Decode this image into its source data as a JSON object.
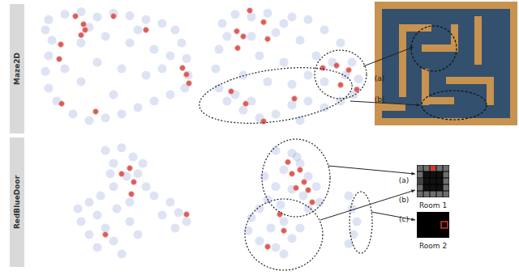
{
  "row_labels": [
    "Maze2D",
    "RedBlueDoor"
  ],
  "chart_data": [
    {
      "type": "scatter",
      "xlim": [
        0,
        100
      ],
      "ylim": [
        0,
        100
      ],
      "tick_labels": false,
      "grid": false,
      "series": [
        {
          "color": "#8a9ad6",
          "marker": "circle",
          "values": [
            [
              10,
              88
            ],
            [
              20,
              92
            ],
            [
              30,
              94
            ],
            [
              40,
              90
            ],
            [
              50,
              93
            ],
            [
              60,
              91
            ],
            [
              70,
              88
            ],
            [
              80,
              85
            ],
            [
              88,
              80
            ],
            [
              92,
              70
            ],
            [
              95,
              58
            ],
            [
              96,
              45
            ],
            [
              94,
              35
            ],
            [
              85,
              30
            ],
            [
              75,
              25
            ],
            [
              65,
              20
            ],
            [
              55,
              15
            ],
            [
              45,
              12
            ],
            [
              35,
              10
            ],
            [
              25,
              15
            ],
            [
              15,
              25
            ],
            [
              10,
              35
            ],
            [
              8,
              48
            ],
            [
              10,
              60
            ],
            [
              12,
              72
            ],
            [
              8,
              80
            ],
            [
              30,
              70
            ],
            [
              45,
              75
            ],
            [
              60,
              70
            ],
            [
              75,
              65
            ],
            [
              40,
              55
            ],
            [
              55,
              50
            ],
            [
              70,
              45
            ],
            [
              30,
              40
            ],
            [
              50,
              30
            ],
            [
              80,
              50
            ],
            [
              20,
              50
            ],
            [
              65,
              80
            ],
            [
              35,
              82
            ],
            [
              85,
              60
            ]
          ]
        },
        {
          "color": "#d9534f",
          "marker": "circle",
          "values": [
            [
              26.5,
              90.6
            ],
            [
              32.5,
              80
            ],
            [
              30,
              76
            ],
            [
              50,
              90.6
            ],
            [
              70,
              80
            ],
            [
              17.5,
              68.8
            ],
            [
              16.5,
              57.5
            ],
            [
              92.5,
              50.6
            ],
            [
              95,
              45.6
            ],
            [
              96.5,
              38.8
            ],
            [
              39,
              16.9
            ],
            [
              18,
              23
            ],
            [
              31.5,
              84.4
            ]
          ]
        }
      ]
    },
    {
      "type": "scatter",
      "xlim": [
        0,
        100
      ],
      "ylim": [
        0,
        100
      ],
      "tick_labels": false,
      "grid": false,
      "series": [
        {
          "color": "#8a9ad6",
          "marker": "circle",
          "values": [
            [
              12,
              85
            ],
            [
              20,
              92
            ],
            [
              30,
              90
            ],
            [
              40,
              93
            ],
            [
              55,
              90
            ],
            [
              65,
              88
            ],
            [
              75,
              80
            ],
            [
              85,
              70
            ],
            [
              92,
              55
            ],
            [
              96,
              42
            ],
            [
              93,
              30
            ],
            [
              85,
              25
            ],
            [
              75,
              20
            ],
            [
              65,
              25
            ],
            [
              55,
              22
            ],
            [
              45,
              15
            ],
            [
              35,
              12
            ],
            [
              25,
              18
            ],
            [
              15,
              25
            ],
            [
              10,
              35
            ],
            [
              8,
              50
            ],
            [
              10,
              65
            ],
            [
              15,
              75
            ],
            [
              30,
              75
            ],
            [
              45,
              78
            ],
            [
              60,
              72
            ],
            [
              70,
              60
            ],
            [
              80,
              55
            ],
            [
              50,
              55
            ],
            [
              35,
              60
            ],
            [
              25,
              45
            ],
            [
              40,
              40
            ],
            [
              55,
              38
            ],
            [
              65,
              45
            ],
            [
              20,
              30
            ],
            [
              75,
              40
            ],
            [
              88,
              45
            ],
            [
              50,
              85
            ],
            [
              30,
              25
            ],
            [
              60,
              10
            ]
          ]
        },
        {
          "color": "#d9534f",
          "marker": "circle",
          "values": [
            [
              21,
              79
            ],
            [
              25,
              75
            ],
            [
              21.5,
              66
            ],
            [
              37.5,
              86
            ],
            [
              40,
              73
            ],
            [
              29,
              95
            ],
            [
              74,
              50.6
            ],
            [
              82.5,
              52.5
            ],
            [
              90,
              49
            ],
            [
              85,
              37.5
            ],
            [
              95,
              34
            ],
            [
              17.5,
              32.5
            ],
            [
              26.5,
              23
            ],
            [
              56.5,
              26.9
            ],
            [
              37.5,
              9.4
            ]
          ]
        }
      ]
    },
    {
      "type": "scatter",
      "xlim": [
        0,
        100
      ],
      "ylim": [
        0,
        100
      ],
      "tick_labels": false,
      "grid": false,
      "series": [
        {
          "color": "#8a9ad6",
          "marker": "circle",
          "values": [
            [
              45,
              90
            ],
            [
              55,
              92
            ],
            [
              62,
              85
            ],
            [
              50,
              80
            ],
            [
              58,
              70
            ],
            [
              65,
              72
            ],
            [
              70,
              62
            ],
            [
              50,
              62
            ],
            [
              42,
              55
            ],
            [
              35,
              50
            ],
            [
              28,
              45
            ],
            [
              40,
              40
            ],
            [
              52,
              45
            ],
            [
              60,
              50
            ],
            [
              75,
              55
            ],
            [
              85,
              50
            ],
            [
              90,
              42
            ],
            [
              95,
              35
            ],
            [
              88,
              30
            ],
            [
              80,
              40
            ],
            [
              45,
              30
            ],
            [
              50,
              20
            ],
            [
              40,
              15
            ],
            [
              35,
              25
            ],
            [
              55,
              10
            ],
            [
              30,
              35
            ],
            [
              60,
              35
            ],
            [
              65,
              25
            ],
            [
              48,
              72
            ],
            [
              68,
              80
            ]
          ]
        },
        {
          "color": "#d9534f",
          "marker": "circle",
          "values": [
            [
              55,
              71.9
            ],
            [
              60,
              76.3
            ],
            [
              62.5,
              65.6
            ],
            [
              61,
              56.3
            ],
            [
              45,
              25
            ],
            [
              95,
              40.6
            ]
          ]
        }
      ]
    },
    {
      "type": "scatter",
      "xlim": [
        0,
        100
      ],
      "ylim": [
        0,
        100
      ],
      "tick_labels": false,
      "grid": false,
      "series": [
        {
          "color": "#8a9ad6",
          "marker": "circle",
          "values": [
            [
              45,
              90
            ],
            [
              55,
              88
            ],
            [
              60,
              80
            ],
            [
              50,
              75
            ],
            [
              65,
              70
            ],
            [
              70,
              62
            ],
            [
              55,
              60
            ],
            [
              45,
              62
            ],
            [
              40,
              52
            ],
            [
              35,
              45
            ],
            [
              30,
              38
            ],
            [
              28,
              28
            ],
            [
              35,
              20
            ],
            [
              45,
              15
            ],
            [
              50,
              10
            ],
            [
              55,
              22
            ],
            [
              60,
              30
            ],
            [
              50,
              35
            ],
            [
              42,
              30
            ],
            [
              65,
              45
            ],
            [
              72,
              50
            ],
            [
              90,
              55
            ],
            [
              92,
              45
            ],
            [
              95,
              35
            ],
            [
              93,
              25
            ],
            [
              90,
              18
            ],
            [
              38,
              70
            ],
            [
              62,
              55
            ],
            [
              48,
              48
            ],
            [
              58,
              85
            ]
          ]
        },
        {
          "color": "#d9534f",
          "marker": "circle",
          "values": [
            [
              52.5,
              81
            ],
            [
              55,
              72
            ],
            [
              60,
              75
            ],
            [
              62.5,
              65.6
            ],
            [
              57.5,
              61
            ],
            [
              65,
              59.4
            ],
            [
              67.5,
              50
            ],
            [
              47.5,
              40.6
            ],
            [
              50,
              28
            ],
            [
              40,
              15.6
            ]
          ]
        }
      ]
    }
  ],
  "maze_callouts": [
    "(a)",
    "(b)"
  ],
  "room_callouts": [
    "(a)",
    "(b)",
    "(c)"
  ],
  "rooms": [
    "Room 1",
    "Room 2"
  ]
}
